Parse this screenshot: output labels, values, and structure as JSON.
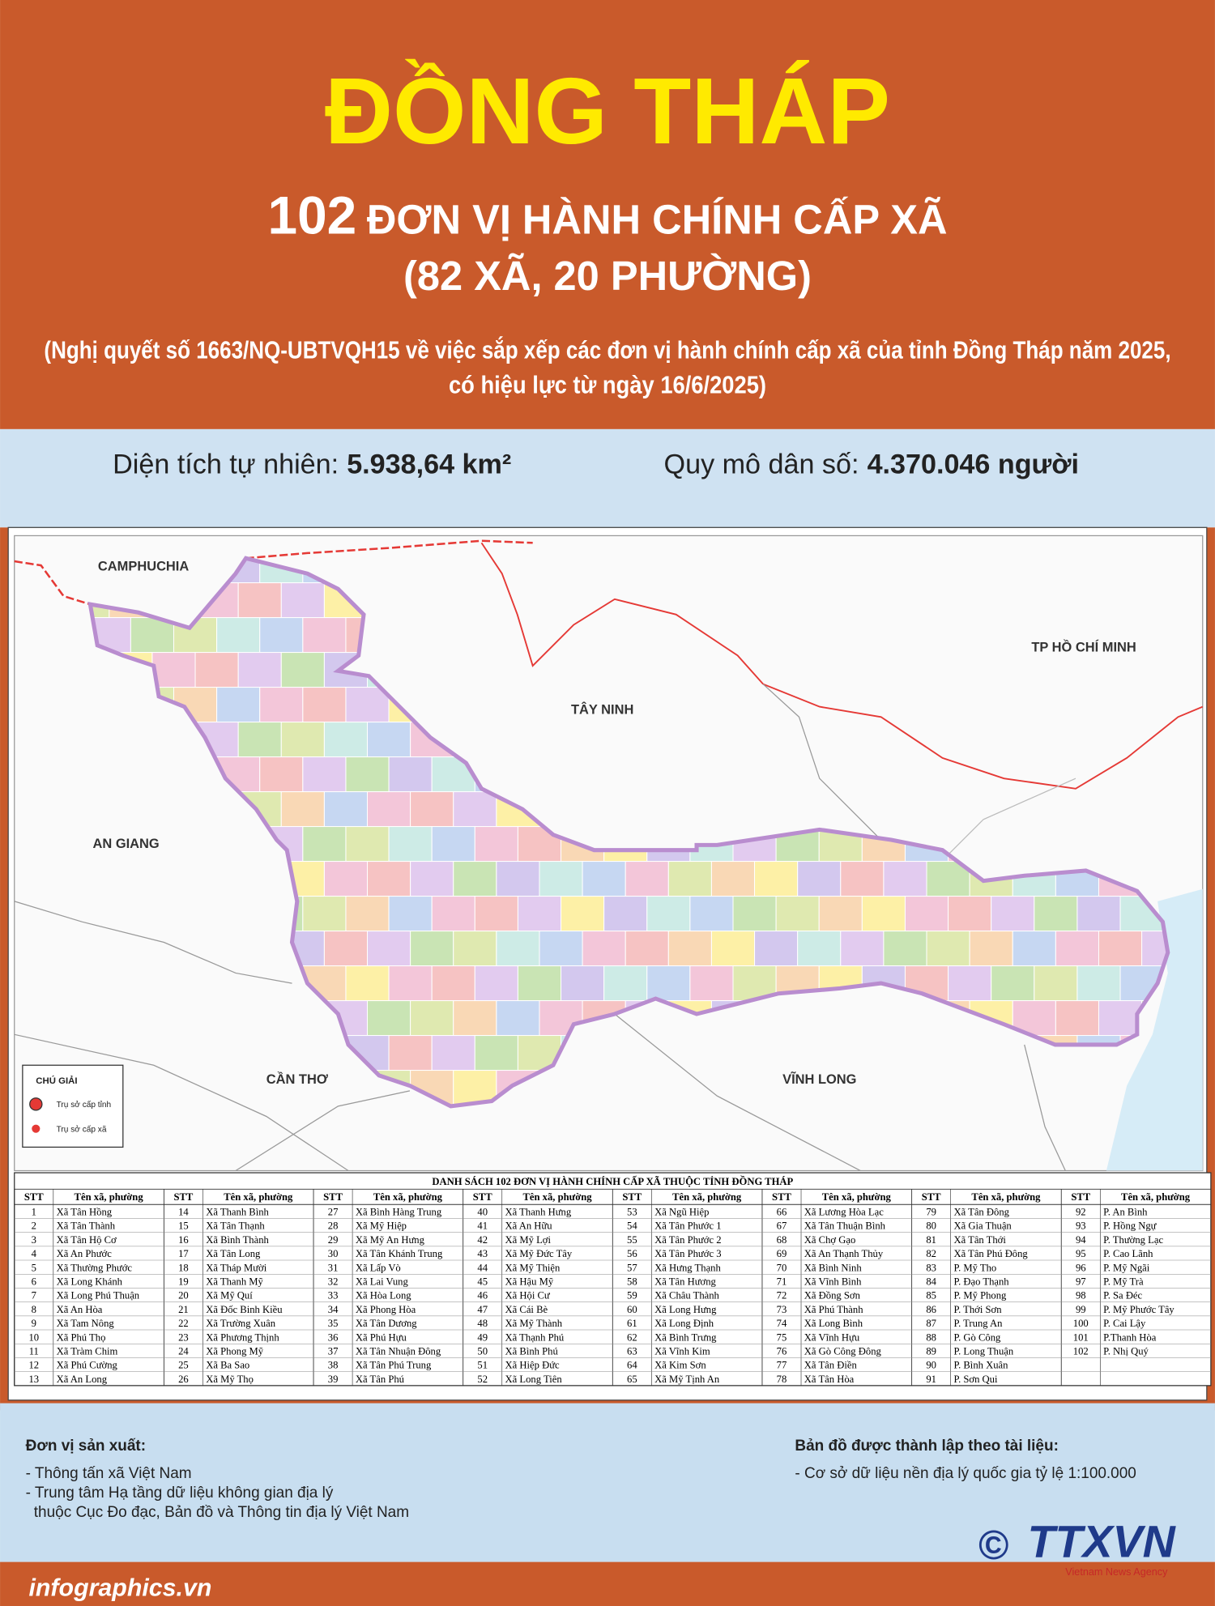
{
  "header": {
    "title": "ĐỒNG THÁP",
    "count": "102",
    "subtitle": "ĐƠN VỊ HÀNH CHÍNH CẤP XÃ",
    "breakdown": "(82 XÃ, 20 PHƯỜNG)",
    "note": [
      "(Nghị quyết số 1663/NQ-UBTVQH15 về việc sắp xếp các đơn vị hành chính cấp xã của tỉnh Đồng Tháp năm 2025,",
      "có hiệu lực từ ngày 16/6/2025)"
    ]
  },
  "stats": {
    "area_label": "Diện tích tự nhiên:",
    "area_value": "5.938,64 km²",
    "population_label": "Quy mô dân số:",
    "population_value": "4.370.046 người"
  },
  "map": {
    "regions": [
      "CAMPHUCHIA",
      "TÂY NINH",
      "TP HỒ CHÍ MINH",
      "AN GIANG",
      "CẦN THƠ",
      "VĨNH LONG"
    ],
    "legend": {
      "title": "CHÚ GIẢI",
      "items": [
        "Trụ sở cấp tỉnh",
        "Trụ sở cấp xã"
      ]
    }
  },
  "table": {
    "title": "DANH SÁCH 102 ĐƠN VỊ HÀNH CHÍNH CẤP XÃ THUỘC TỈNH ĐỒNG THÁP",
    "headers": [
      "STT",
      "Tên xã, phường"
    ],
    "entries": [
      [
        1,
        "Xã Tân Hồng"
      ],
      [
        2,
        "Xã Tân Thành"
      ],
      [
        3,
        "Xã Tân Hộ Cơ"
      ],
      [
        4,
        "Xã An Phước"
      ],
      [
        5,
        "Xã Thường Phước"
      ],
      [
        6,
        "Xã Long Khánh"
      ],
      [
        7,
        "Xã Long Phú Thuận"
      ],
      [
        8,
        "Xã An Hòa"
      ],
      [
        9,
        "Xã Tam Nông"
      ],
      [
        10,
        "Xã Phú Thọ"
      ],
      [
        11,
        "Xã Tràm Chim"
      ],
      [
        12,
        "Xã Phú Cường"
      ],
      [
        13,
        "Xã An Long"
      ],
      [
        14,
        "Xã Thanh Bình"
      ],
      [
        15,
        "Xã Tân Thạnh"
      ],
      [
        16,
        "Xã Bình Thành"
      ],
      [
        17,
        "Xã Tân Long"
      ],
      [
        18,
        "Xã Tháp Mười"
      ],
      [
        19,
        "Xã Thanh Mỹ"
      ],
      [
        20,
        "Xã Mỹ Quí"
      ],
      [
        21,
        "Xã Đốc Binh Kiều"
      ],
      [
        22,
        "Xã Trường Xuân"
      ],
      [
        23,
        "Xã Phương Thịnh"
      ],
      [
        24,
        "Xã Phong Mỹ"
      ],
      [
        25,
        "Xã Ba Sao"
      ],
      [
        26,
        "Xã Mỹ Thọ"
      ],
      [
        27,
        "Xã Bình Hàng Trung"
      ],
      [
        28,
        "Xã Mỹ Hiệp"
      ],
      [
        29,
        "Xã Mỹ An Hưng"
      ],
      [
        30,
        "Xã Tân Khánh Trung"
      ],
      [
        31,
        "Xã Lấp Vò"
      ],
      [
        32,
        "Xã Lai Vung"
      ],
      [
        33,
        "Xã Hòa Long"
      ],
      [
        34,
        "Xã Phong Hòa"
      ],
      [
        35,
        "Xã Tân Dương"
      ],
      [
        36,
        "Xã Phú Hựu"
      ],
      [
        37,
        "Xã Tân Nhuận Đông"
      ],
      [
        38,
        "Xã Tân Phú Trung"
      ],
      [
        39,
        "Xã Tân Phú"
      ],
      [
        40,
        "Xã Thanh Hưng"
      ],
      [
        41,
        "Xã An Hữu"
      ],
      [
        42,
        "Xã Mỹ Lợi"
      ],
      [
        43,
        "Xã Mỹ Đức Tây"
      ],
      [
        44,
        "Xã Mỹ Thiện"
      ],
      [
        45,
        "Xã Hậu Mỹ"
      ],
      [
        46,
        "Xã Hội Cư"
      ],
      [
        47,
        "Xã Cái Bè"
      ],
      [
        48,
        "Xã Mỹ Thành"
      ],
      [
        49,
        "Xã Thạnh Phú"
      ],
      [
        50,
        "Xã Bình Phú"
      ],
      [
        51,
        "Xã Hiệp Đức"
      ],
      [
        52,
        "Xã Long Tiên"
      ],
      [
        53,
        "Xã Ngũ Hiệp"
      ],
      [
        54,
        "Xã Tân Phước 1"
      ],
      [
        55,
        "Xã Tân Phước 2"
      ],
      [
        56,
        "Xã Tân Phước 3"
      ],
      [
        57,
        "Xã Hưng Thạnh"
      ],
      [
        58,
        "Xã Tân Hương"
      ],
      [
        59,
        "Xã Châu Thành"
      ],
      [
        60,
        "Xã Long Hưng"
      ],
      [
        61,
        "Xã Long Định"
      ],
      [
        62,
        "Xã Bình Trưng"
      ],
      [
        63,
        "Xã Vĩnh Kim"
      ],
      [
        64,
        "Xã Kim Sơn"
      ],
      [
        65,
        "Xã Mỹ Tịnh An"
      ],
      [
        66,
        "Xã Lương Hòa Lạc"
      ],
      [
        67,
        "Xã Tân Thuận Bình"
      ],
      [
        68,
        "Xã Chợ Gạo"
      ],
      [
        69,
        "Xã An Thạnh Thủy"
      ],
      [
        70,
        "Xã Bình Ninh"
      ],
      [
        71,
        "Xã Vĩnh Bình"
      ],
      [
        72,
        "Xã Đồng Sơn"
      ],
      [
        73,
        "Xã Phú Thành"
      ],
      [
        74,
        "Xã Long Bình"
      ],
      [
        75,
        "Xã Vĩnh Hựu"
      ],
      [
        76,
        "Xã Gò Công Đông"
      ],
      [
        77,
        "Xã Tân Điền"
      ],
      [
        78,
        "Xã Tân Hòa"
      ],
      [
        79,
        "Xã Tân Đông"
      ],
      [
        80,
        "Xã Gia Thuận"
      ],
      [
        81,
        "Xã Tân Thới"
      ],
      [
        82,
        "Xã Tân Phú Đông"
      ],
      [
        83,
        "P. Mỹ Tho"
      ],
      [
        84,
        "P. Đạo Thạnh"
      ],
      [
        85,
        "P. Mỹ Phong"
      ],
      [
        86,
        "P. Thới Sơn"
      ],
      [
        87,
        "P. Trung An"
      ],
      [
        88,
        "P. Gò Công"
      ],
      [
        89,
        "P. Long Thuận"
      ],
      [
        90,
        "P. Bình Xuân"
      ],
      [
        91,
        "P. Sơn Qui"
      ],
      [
        92,
        "P. An Bình"
      ],
      [
        93,
        "P. Hồng Ngự"
      ],
      [
        94,
        "P. Thường Lạc"
      ],
      [
        95,
        "P. Cao Lãnh"
      ],
      [
        96,
        "P. Mỹ Ngãi"
      ],
      [
        97,
        "P. Mỹ Trà"
      ],
      [
        98,
        "P. Sa Đéc"
      ],
      [
        99,
        "P. Mỹ Phước Tây"
      ],
      [
        100,
        "P. Cai Lậy"
      ],
      [
        101,
        "P.Thanh Hòa"
      ],
      [
        102,
        "P. Nhị Quý"
      ]
    ]
  },
  "footer": {
    "producer_title": "Đơn vị sản xuất:",
    "producer_lines": [
      "- Thông tấn xã Việt Nam",
      "- Trung tâm Hạ tầng dữ liệu không gian địa lý",
      "thuộc Cục Đo đạc, Bản đồ và Thông tin địa lý Việt Nam"
    ],
    "source_title": "Bản đồ được thành lập theo tài liệu:",
    "source_lines": [
      "- Cơ sở dữ liệu nền địa lý quốc gia tỷ lệ 1:100.000"
    ],
    "copyright": "©",
    "logo": "TTXVN",
    "logo_sub": "Vietnam News Agency"
  },
  "site": "infographics.vn"
}
